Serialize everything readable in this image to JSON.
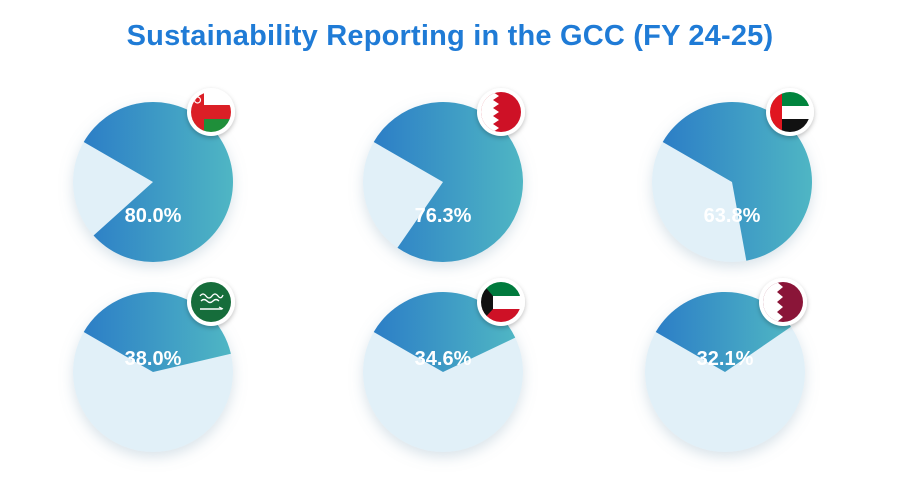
{
  "title": "Sustainability Reporting in the GCC (FY 24-25)",
  "colors": {
    "title": "#1f7bd6",
    "slice_gradient_start": "#2c7ec6",
    "slice_gradient_end": "#4fb6c4",
    "remainder": "#e1f0f8",
    "label": "#ffffff"
  },
  "chart_data": [
    {
      "type": "pie",
      "country_flag": "oman-flag",
      "value_label": "80.0%",
      "values": [
        80.0,
        20.0
      ]
    },
    {
      "type": "pie",
      "country_flag": "bahrain-flag",
      "value_label": "76.3%",
      "values": [
        76.3,
        23.7
      ]
    },
    {
      "type": "pie",
      "country_flag": "uae-flag",
      "value_label": "63.8%",
      "values": [
        63.8,
        36.2
      ]
    },
    {
      "type": "pie",
      "country_flag": "saudi-arabia-flag",
      "value_label": "38.0%",
      "values": [
        38.0,
        62.0
      ]
    },
    {
      "type": "pie",
      "country_flag": "kuwait-flag",
      "value_label": "34.6%",
      "values": [
        34.6,
        65.4
      ]
    },
    {
      "type": "pie",
      "country_flag": "qatar-flag",
      "value_label": "32.1%",
      "values": [
        32.1,
        67.9
      ]
    }
  ]
}
